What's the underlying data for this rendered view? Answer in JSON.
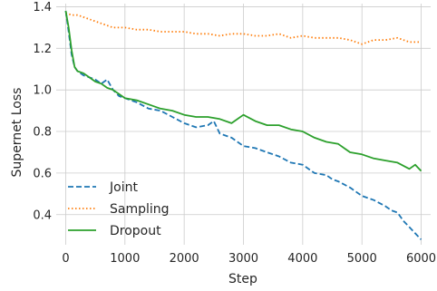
{
  "chart_data": {
    "type": "line",
    "title": "",
    "xlabel": "Step",
    "ylabel": "Supernet Loss",
    "xlim": [
      -160,
      6160
    ],
    "ylim": [
      0.255,
      1.415
    ],
    "xticks": [
      0,
      1000,
      2000,
      3000,
      4000,
      5000,
      6000
    ],
    "yticks": [
      0.4,
      0.6,
      0.8,
      1.0,
      1.2,
      1.4
    ],
    "xtick_labels": [
      "0",
      "1000",
      "2000",
      "3000",
      "4000",
      "5000",
      "6000"
    ],
    "ytick_labels": [
      "0.4",
      "0.6",
      "0.8",
      "1.0",
      "1.2",
      "1.4"
    ],
    "grid": true,
    "legend_position": "lower-left",
    "series": [
      {
        "name": "Joint",
        "color": "#1f77b4",
        "linestyle": "dashed",
        "x": [
          0,
          50,
          100,
          150,
          200,
          250,
          300,
          400,
          500,
          600,
          700,
          800,
          900,
          1000,
          1200,
          1400,
          1600,
          1800,
          2000,
          2200,
          2400,
          2500,
          2600,
          2800,
          3000,
          3200,
          3400,
          3600,
          3800,
          4000,
          4200,
          4400,
          4500,
          4600,
          4800,
          5000,
          5200,
          5400,
          5500,
          5600,
          5700,
          5800,
          5900,
          6000
        ],
        "y": [
          1.38,
          1.28,
          1.17,
          1.11,
          1.09,
          1.08,
          1.07,
          1.06,
          1.05,
          1.03,
          1.05,
          1.0,
          0.97,
          0.96,
          0.94,
          0.91,
          0.9,
          0.87,
          0.84,
          0.82,
          0.83,
          0.85,
          0.79,
          0.77,
          0.73,
          0.72,
          0.7,
          0.68,
          0.65,
          0.64,
          0.6,
          0.59,
          0.57,
          0.56,
          0.53,
          0.49,
          0.47,
          0.44,
          0.42,
          0.41,
          0.37,
          0.34,
          0.31,
          0.28
        ]
      },
      {
        "name": "Sampling",
        "color": "#ff7f0e",
        "linestyle": "dotted",
        "x": [
          0,
          100,
          200,
          300,
          400,
          500,
          600,
          700,
          800,
          900,
          1000,
          1200,
          1400,
          1600,
          1800,
          2000,
          2200,
          2400,
          2600,
          2800,
          3000,
          3200,
          3400,
          3600,
          3800,
          4000,
          4200,
          4400,
          4600,
          4800,
          5000,
          5200,
          5400,
          5600,
          5800,
          6000
        ],
        "y": [
          1.37,
          1.36,
          1.36,
          1.35,
          1.34,
          1.33,
          1.32,
          1.31,
          1.3,
          1.3,
          1.3,
          1.29,
          1.29,
          1.28,
          1.28,
          1.28,
          1.27,
          1.27,
          1.26,
          1.27,
          1.27,
          1.26,
          1.26,
          1.27,
          1.25,
          1.26,
          1.25,
          1.25,
          1.25,
          1.24,
          1.22,
          1.24,
          1.24,
          1.25,
          1.23,
          1.23
        ]
      },
      {
        "name": "Dropout",
        "color": "#2ca02c",
        "linestyle": "solid",
        "x": [
          0,
          50,
          100,
          150,
          200,
          300,
          400,
          500,
          600,
          700,
          800,
          900,
          1000,
          1200,
          1400,
          1600,
          1800,
          2000,
          2200,
          2400,
          2600,
          2800,
          3000,
          3200,
          3400,
          3600,
          3800,
          4000,
          4200,
          4400,
          4600,
          4800,
          5000,
          5200,
          5400,
          5600,
          5800,
          5900,
          6000
        ],
        "y": [
          1.38,
          1.3,
          1.19,
          1.11,
          1.09,
          1.08,
          1.06,
          1.04,
          1.03,
          1.01,
          1.0,
          0.98,
          0.96,
          0.95,
          0.93,
          0.91,
          0.9,
          0.88,
          0.87,
          0.87,
          0.86,
          0.84,
          0.88,
          0.85,
          0.83,
          0.83,
          0.81,
          0.8,
          0.77,
          0.75,
          0.74,
          0.7,
          0.69,
          0.67,
          0.66,
          0.65,
          0.62,
          0.64,
          0.61
        ]
      }
    ]
  }
}
